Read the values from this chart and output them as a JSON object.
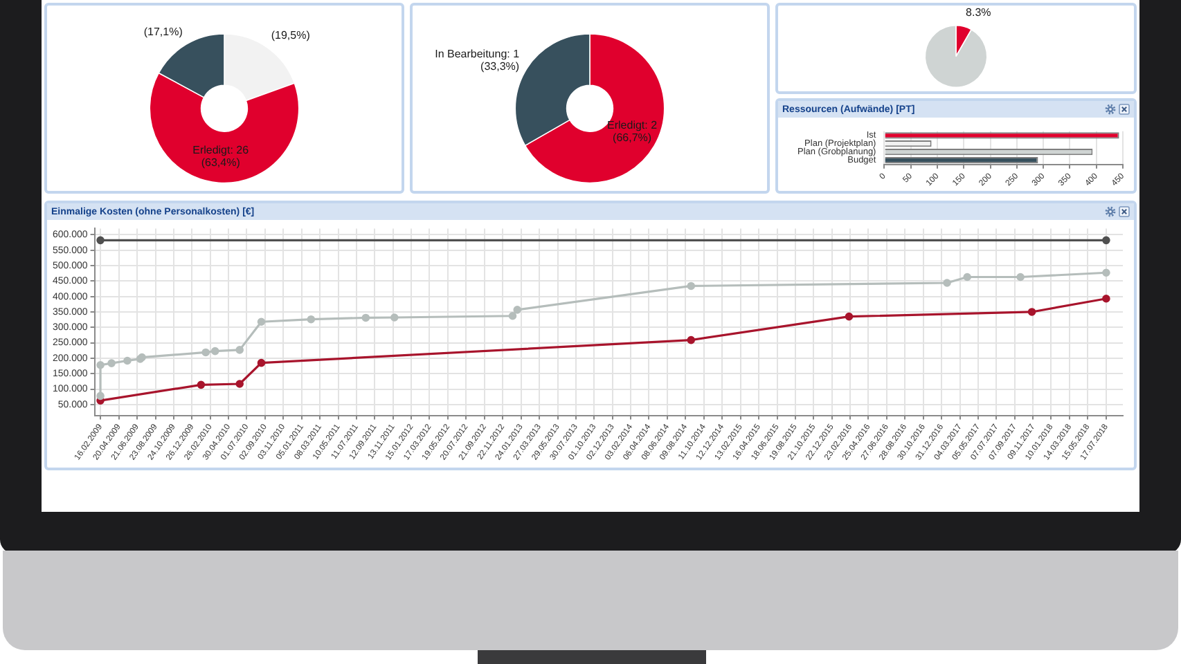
{
  "chart_data": [
    {
      "type": "donut",
      "categories": [
        null,
        "Erledigt: 26",
        null
      ],
      "values": [
        19.5,
        63.4,
        17.1
      ],
      "colors": [
        "#f2f2f2",
        "#e0002d",
        "#37505d"
      ],
      "value_labels": [
        "(19,5%)",
        "(63,4%)",
        "(17,1%)"
      ]
    },
    {
      "type": "donut",
      "categories": [
        "Erledigt: 2",
        "In Bearbeitung: 1"
      ],
      "values": [
        66.7,
        33.3
      ],
      "colors": [
        "#e0002d",
        "#37505d"
      ],
      "value_labels": [
        "(66,7%)",
        "(33,3%)"
      ]
    },
    {
      "type": "pie",
      "categories": [
        null,
        null
      ],
      "values": [
        8.3,
        91.7
      ],
      "colors": [
        "#e0002d",
        "#cfd4d3"
      ],
      "value_labels": [
        "8.3%",
        null
      ]
    },
    {
      "type": "bar",
      "title": "Ressourcen (Aufwände) [PT]",
      "orientation": "horizontal",
      "categories": [
        "Ist",
        "Plan (Projektplan)",
        "Plan (Grobplanung)",
        "Budget"
      ],
      "values": [
        443,
        89,
        393,
        290
      ],
      "colors": [
        "#e0002d",
        "#f2f2f2",
        "#cfd4d3",
        "#37505d"
      ],
      "xlim": [
        0,
        450
      ],
      "xticks": [
        0,
        50,
        100,
        150,
        200,
        250,
        300,
        350,
        400,
        450
      ],
      "grid": "x"
    },
    {
      "type": "line",
      "title": "Einmalige Kosten (ohne Personalkosten) [€]",
      "marker": "circle",
      "grid": true,
      "xlim": [
        "2009-01-27",
        "2018-09-12"
      ],
      "xticks": [
        {
          "value": "2009-02-16",
          "label": "16.02.2009"
        },
        {
          "value": "2009-04-20",
          "label": "20.04.2009"
        },
        {
          "value": "2009-06-21",
          "label": "21.06.2009"
        },
        {
          "value": "2009-08-23",
          "label": "23.08.2009"
        },
        {
          "value": "2009-10-24",
          "label": "24.10.2009"
        },
        {
          "value": "2009-12-26",
          "label": "26.12.2009"
        },
        {
          "value": "2010-02-26",
          "label": "26.02.2010"
        },
        {
          "value": "2010-04-30",
          "label": "30.04.2010"
        },
        {
          "value": "2010-07-01",
          "label": "01.07.2010"
        },
        {
          "value": "2010-09-02",
          "label": "02.09.2010"
        },
        {
          "value": "2010-11-03",
          "label": "03.11.2010"
        },
        {
          "value": "2011-01-05",
          "label": "05.01.2011"
        },
        {
          "value": "2011-03-08",
          "label": "08.03.2011"
        },
        {
          "value": "2011-05-10",
          "label": "10.05.2011"
        },
        {
          "value": "2011-07-11",
          "label": "11.07.2011"
        },
        {
          "value": "2011-09-12",
          "label": "12.09.2011"
        },
        {
          "value": "2011-11-13",
          "label": "13.11.2011"
        },
        {
          "value": "2012-01-15",
          "label": "15.01.2012"
        },
        {
          "value": "2012-03-17",
          "label": "17.03.2012"
        },
        {
          "value": "2012-05-19",
          "label": "19.05.2012"
        },
        {
          "value": "2012-07-20",
          "label": "20.07.2012"
        },
        {
          "value": "2012-09-21",
          "label": "21.09.2012"
        },
        {
          "value": "2012-11-22",
          "label": "22.11.2012"
        },
        {
          "value": "2013-01-24",
          "label": "24.01.2013"
        },
        {
          "value": "2013-03-27",
          "label": "27.03.2013"
        },
        {
          "value": "2013-05-29",
          "label": "29.05.2013"
        },
        {
          "value": "2013-07-30",
          "label": "30.07.2013"
        },
        {
          "value": "2013-10-01",
          "label": "01.10.2013"
        },
        {
          "value": "2013-12-02",
          "label": "02.12.2013"
        },
        {
          "value": "2014-02-03",
          "label": "03.02.2014"
        },
        {
          "value": "2014-04-06",
          "label": "06.04.2014"
        },
        {
          "value": "2014-06-08",
          "label": "08.06.2014"
        },
        {
          "value": "2014-08-09",
          "label": "09.08.2014"
        },
        {
          "value": "2014-10-11",
          "label": "11.10.2014"
        },
        {
          "value": "2014-12-12",
          "label": "12.12.2014"
        },
        {
          "value": "2015-02-13",
          "label": "13.02.2015"
        },
        {
          "value": "2015-04-16",
          "label": "16.04.2015"
        },
        {
          "value": "2015-06-18",
          "label": "18.06.2015"
        },
        {
          "value": "2015-08-19",
          "label": "19.08.2015"
        },
        {
          "value": "2015-10-21",
          "label": "21.10.2015"
        },
        {
          "value": "2015-12-22",
          "label": "22.12.2015"
        },
        {
          "value": "2016-02-23",
          "label": "23.02.2016"
        },
        {
          "value": "2016-04-25",
          "label": "25.04.2016"
        },
        {
          "value": "2016-06-27",
          "label": "27.06.2016"
        },
        {
          "value": "2016-08-28",
          "label": "28.08.2016"
        },
        {
          "value": "2016-10-30",
          "label": "30.10.2016"
        },
        {
          "value": "2016-12-31",
          "label": "31.12.2016"
        },
        {
          "value": "2017-03-04",
          "label": "04.03.2017"
        },
        {
          "value": "2017-05-05",
          "label": "05.05.2017"
        },
        {
          "value": "2017-07-07",
          "label": "07.07.2017"
        },
        {
          "value": "2017-09-07",
          "label": "07.09.2017"
        },
        {
          "value": "2017-11-09",
          "label": "09.11.2017"
        },
        {
          "value": "2018-01-10",
          "label": "10.01.2018"
        },
        {
          "value": "2018-03-14",
          "label": "14.03.2018"
        },
        {
          "value": "2018-05-15",
          "label": "15.05.2018"
        },
        {
          "value": "2018-07-17",
          "label": "17.07.2018"
        }
      ],
      "ylim": [
        15000,
        620000
      ],
      "yticks": [
        {
          "value": 50000,
          "label": "50.000"
        },
        {
          "value": 100000,
          "label": "100.000"
        },
        {
          "value": 150000,
          "label": "150.000"
        },
        {
          "value": 200000,
          "label": "200.000"
        },
        {
          "value": 250000,
          "label": "250.000"
        },
        {
          "value": 300000,
          "label": "300.000"
        },
        {
          "value": 350000,
          "label": "350.000"
        },
        {
          "value": 400000,
          "label": "400.000"
        },
        {
          "value": 450000,
          "label": "450.000"
        },
        {
          "value": 500000,
          "label": "500.000"
        },
        {
          "value": 550000,
          "label": "550.000"
        },
        {
          "value": 600000,
          "label": "600.000"
        }
      ],
      "series": [
        {
          "color": "#505050",
          "x": [
            "2009-02-16",
            "2018-07-17"
          ],
          "values": [
            582000,
            582000
          ]
        },
        {
          "color": "#b5bdbb",
          "x": [
            "2009-02-16",
            "2009-02-16",
            "2009-03-26",
            "2009-05-19",
            "2009-07-02",
            "2009-07-08",
            "2010-02-11",
            "2010-03-15",
            "2010-06-07",
            "2010-08-20",
            "2011-02-06",
            "2011-08-12",
            "2011-11-18",
            "2012-12-26",
            "2013-01-11",
            "2014-08-28",
            "2017-01-19",
            "2017-03-29",
            "2017-09-27",
            "2018-07-17"
          ],
          "values": [
            78000,
            178000,
            184000,
            192000,
            198000,
            203000,
            219000,
            223000,
            227000,
            318000,
            326000,
            331000,
            332000,
            337000,
            357000,
            434000,
            444000,
            463000,
            463000,
            477000
          ]
        },
        {
          "color": "#a8142c",
          "x": [
            "2009-02-16",
            "2010-01-26",
            "2010-06-07",
            "2010-08-20",
            "2014-08-28",
            "2016-02-19",
            "2017-11-05",
            "2018-07-17"
          ],
          "values": [
            63000,
            114000,
            117000,
            185000,
            259000,
            335000,
            350000,
            393000
          ]
        }
      ]
    }
  ]
}
